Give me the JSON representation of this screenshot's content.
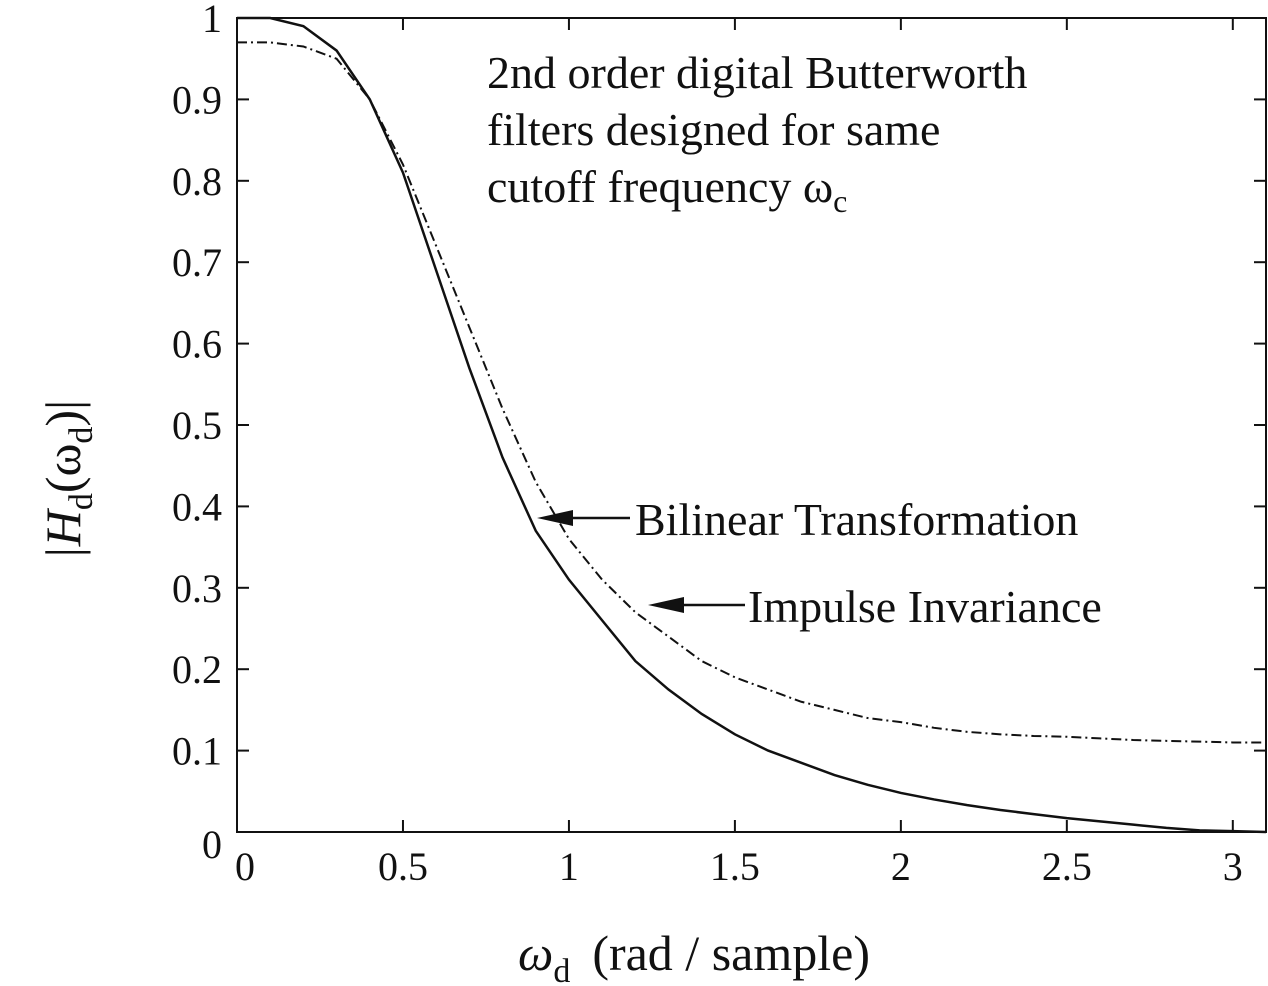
{
  "chart_data": {
    "type": "line",
    "ylabel_parts": [
      "|H",
      "d",
      "(ω",
      "d",
      ")|"
    ],
    "xlabel_parts": [
      "ω",
      "d",
      "(rad / sample)"
    ],
    "annotation": [
      "2nd order digital Butterworth",
      "filters designed for same",
      "cutoff frequency ω"
    ],
    "annotation_sub": "c",
    "x": [
      0,
      0.1,
      0.2,
      0.3,
      0.4,
      0.5,
      0.6,
      0.7,
      0.8,
      0.9,
      1.0,
      1.1,
      1.2,
      1.3,
      1.4,
      1.5,
      1.6,
      1.7,
      1.8,
      1.9,
      2.0,
      2.1,
      2.2,
      2.3,
      2.4,
      2.5,
      2.6,
      2.7,
      2.8,
      2.9,
      3.0,
      3.1
    ],
    "series": [
      {
        "name": "Bilinear Transformation",
        "color": "#111111",
        "dash": "solid",
        "values": [
          1.0,
          1.0,
          0.99,
          0.96,
          0.9,
          0.81,
          0.69,
          0.57,
          0.46,
          0.37,
          0.31,
          0.26,
          0.21,
          0.175,
          0.145,
          0.12,
          0.1,
          0.085,
          0.07,
          0.058,
          0.048,
          0.04,
          0.033,
          0.027,
          0.022,
          0.017,
          0.013,
          0.009,
          0.005,
          0.002,
          0.001,
          0
        ]
      },
      {
        "name": "Impulse Invariance",
        "color": "#111111",
        "dash": "dashdot",
        "values": [
          0.97,
          0.97,
          0.965,
          0.95,
          0.9,
          0.82,
          0.72,
          0.62,
          0.52,
          0.43,
          0.36,
          0.31,
          0.27,
          0.24,
          0.21,
          0.19,
          0.175,
          0.16,
          0.15,
          0.14,
          0.135,
          0.128,
          0.123,
          0.12,
          0.118,
          0.117,
          0.115,
          0.113,
          0.112,
          0.111,
          0.11,
          0.11
        ]
      }
    ],
    "xlim": [
      0,
      3.1
    ],
    "ylim": [
      0,
      1
    ],
    "xticks": [
      0,
      0.5,
      1,
      1.5,
      2,
      2.5,
      3
    ],
    "yticks": [
      0,
      0.1,
      0.2,
      0.3,
      0.4,
      0.5,
      0.6,
      0.7,
      0.8,
      0.9,
      1
    ]
  }
}
